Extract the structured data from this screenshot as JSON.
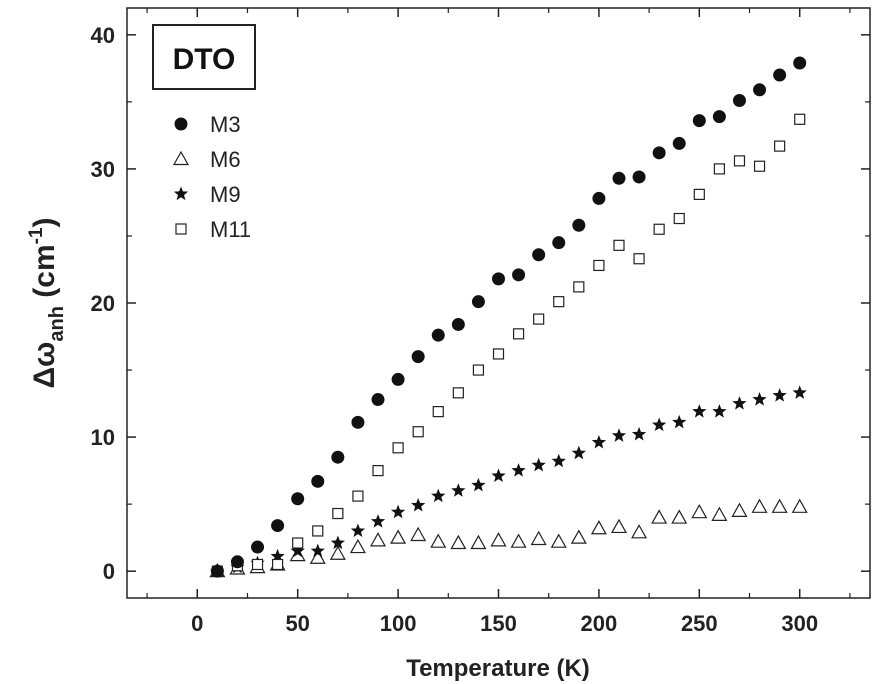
{
  "chart_data": {
    "type": "scatter",
    "title": "",
    "annotation": "DTO",
    "xlabel": "Temperature (K)",
    "ylabel": {
      "prefix": "Δω",
      "subscript": "anh",
      "unit_open": " (cm",
      "unit_superscript": "-1",
      "unit_close": ")"
    },
    "xlim": [
      -35,
      335
    ],
    "ylim": [
      -2,
      42
    ],
    "xticks": [
      0,
      50,
      100,
      150,
      200,
      250,
      300
    ],
    "yticks": [
      0,
      10,
      20,
      30,
      40
    ],
    "legend_position": "top-left",
    "grid": false,
    "x": [
      10,
      20,
      30,
      40,
      50,
      60,
      70,
      80,
      90,
      100,
      110,
      120,
      130,
      140,
      150,
      160,
      170,
      180,
      190,
      200,
      210,
      220,
      230,
      240,
      250,
      260,
      270,
      280,
      290,
      300
    ],
    "series": [
      {
        "name": "M3",
        "marker": "filled-circle",
        "values": [
          0,
          0.7,
          1.8,
          3.4,
          5.4,
          6.7,
          8.5,
          11.1,
          12.8,
          14.3,
          16.0,
          17.6,
          18.4,
          20.1,
          21.8,
          22.1,
          23.6,
          24.5,
          25.8,
          27.8,
          29.3,
          29.4,
          31.2,
          31.9,
          33.6,
          33.9,
          35.1,
          35.9,
          37.0,
          37.9
        ]
      },
      {
        "name": "M6",
        "marker": "open-triangle",
        "values": [
          0,
          0.2,
          0.3,
          0.5,
          1.2,
          1.0,
          1.3,
          1.8,
          2.3,
          2.5,
          2.7,
          2.2,
          2.1,
          2.1,
          2.3,
          2.2,
          2.4,
          2.2,
          2.5,
          3.2,
          3.3,
          2.9,
          4.0,
          4.0,
          4.4,
          4.2,
          4.5,
          4.8,
          4.8,
          4.8
        ]
      },
      {
        "name": "M9",
        "marker": "filled-star",
        "values": [
          0,
          0.3,
          0.6,
          1.1,
          1.5,
          1.5,
          2.1,
          3.0,
          3.7,
          4.4,
          4.9,
          5.6,
          6.0,
          6.4,
          7.1,
          7.5,
          7.9,
          8.2,
          8.8,
          9.6,
          10.1,
          10.2,
          10.9,
          11.1,
          11.9,
          11.9,
          12.5,
          12.8,
          13.1,
          13.3
        ]
      },
      {
        "name": "M11",
        "marker": "open-square",
        "values": [
          0,
          0.4,
          0.5,
          0.5,
          2.1,
          3.0,
          4.3,
          5.6,
          7.5,
          9.2,
          10.4,
          11.9,
          13.3,
          15.0,
          16.2,
          17.7,
          18.8,
          20.1,
          21.2,
          22.8,
          24.3,
          23.3,
          25.5,
          26.3,
          28.1,
          30.0,
          30.6,
          30.2,
          31.7,
          33.7
        ]
      }
    ]
  }
}
